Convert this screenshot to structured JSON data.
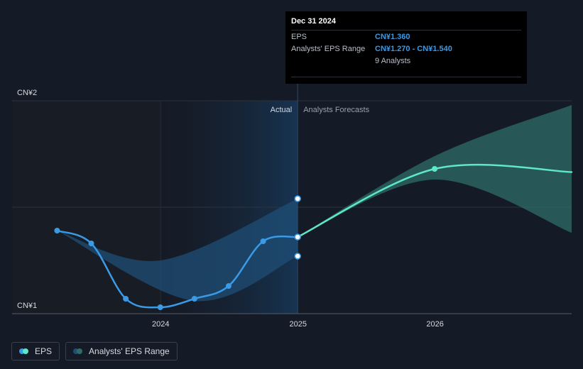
{
  "chart_data": {
    "type": "line",
    "y_ticks": [
      {
        "label": "CN¥2",
        "value": 2
      },
      {
        "label": "CN¥1",
        "value": 1
      }
    ],
    "x_ticks": [
      {
        "label": "2024",
        "value": "2024-01-01"
      },
      {
        "label": "2025",
        "value": "2025-01-01"
      },
      {
        "label": "2026",
        "value": "2026-01-01"
      }
    ],
    "ylim": [
      1,
      2
    ],
    "xlim": [
      "2022-12-01",
      "2026-12-31"
    ],
    "region_labels": {
      "actual": "Actual",
      "forecast": "Analysts Forecasts"
    },
    "divider_date": "2024-12-31",
    "series": [
      {
        "name": "EPS",
        "color": "#3a9ae6",
        "points": [
          {
            "x": "2023-03-31",
            "y": 1.39
          },
          {
            "x": "2023-06-30",
            "y": 1.33
          },
          {
            "x": "2023-09-30",
            "y": 1.07
          },
          {
            "x": "2023-12-31",
            "y": 1.03
          },
          {
            "x": "2024-03-31",
            "y": 1.07
          },
          {
            "x": "2024-06-30",
            "y": 1.13
          },
          {
            "x": "2024-09-30",
            "y": 1.34
          },
          {
            "x": "2024-12-31",
            "y": 1.36
          }
        ]
      },
      {
        "name": "EPS Forecast",
        "color": "#5ee8c8",
        "points": [
          {
            "x": "2024-12-31",
            "y": 1.36
          },
          {
            "x": "2025-12-31",
            "y": 1.68
          },
          {
            "x": "2026-12-31",
            "y": 1.665
          }
        ]
      }
    ],
    "range_past": {
      "name": "Analysts' EPS Range",
      "upper": [
        {
          "x": "2023-03-31",
          "y": 1.39
        },
        {
          "x": "2023-12-31",
          "y": 1.25
        },
        {
          "x": "2024-12-31",
          "y": 1.54
        }
      ],
      "lower": [
        {
          "x": "2023-03-31",
          "y": 1.39
        },
        {
          "x": "2024-03-31",
          "y": 1.06
        },
        {
          "x": "2024-12-31",
          "y": 1.27
        }
      ]
    },
    "range_forecast": {
      "upper": [
        {
          "x": "2024-12-31",
          "y": 1.36
        },
        {
          "x": "2025-12-31",
          "y": 1.74
        },
        {
          "x": "2026-12-31",
          "y": 1.98
        }
      ],
      "lower": [
        {
          "x": "2024-12-31",
          "y": 1.36
        },
        {
          "x": "2025-12-31",
          "y": 1.63
        },
        {
          "x": "2026-12-31",
          "y": 1.38
        }
      ]
    },
    "markers": [
      {
        "x": "2024-12-31",
        "y": 1.54
      },
      {
        "x": "2024-12-31",
        "y": 1.27
      }
    ]
  },
  "tooltip": {
    "date": "Dec 31 2024",
    "eps_label": "EPS",
    "eps_value": "CN¥1.360",
    "range_label": "Analysts' EPS Range",
    "range_value": "CN¥1.270 - CN¥1.540",
    "analysts": "9 Analysts"
  },
  "legend": {
    "eps": "EPS",
    "range": "Analysts' EPS Range",
    "eps_colors": [
      "#5ee8c8",
      "#3a9ae6"
    ],
    "range_colors": [
      "#2f6c6a",
      "#1f4e75"
    ]
  }
}
